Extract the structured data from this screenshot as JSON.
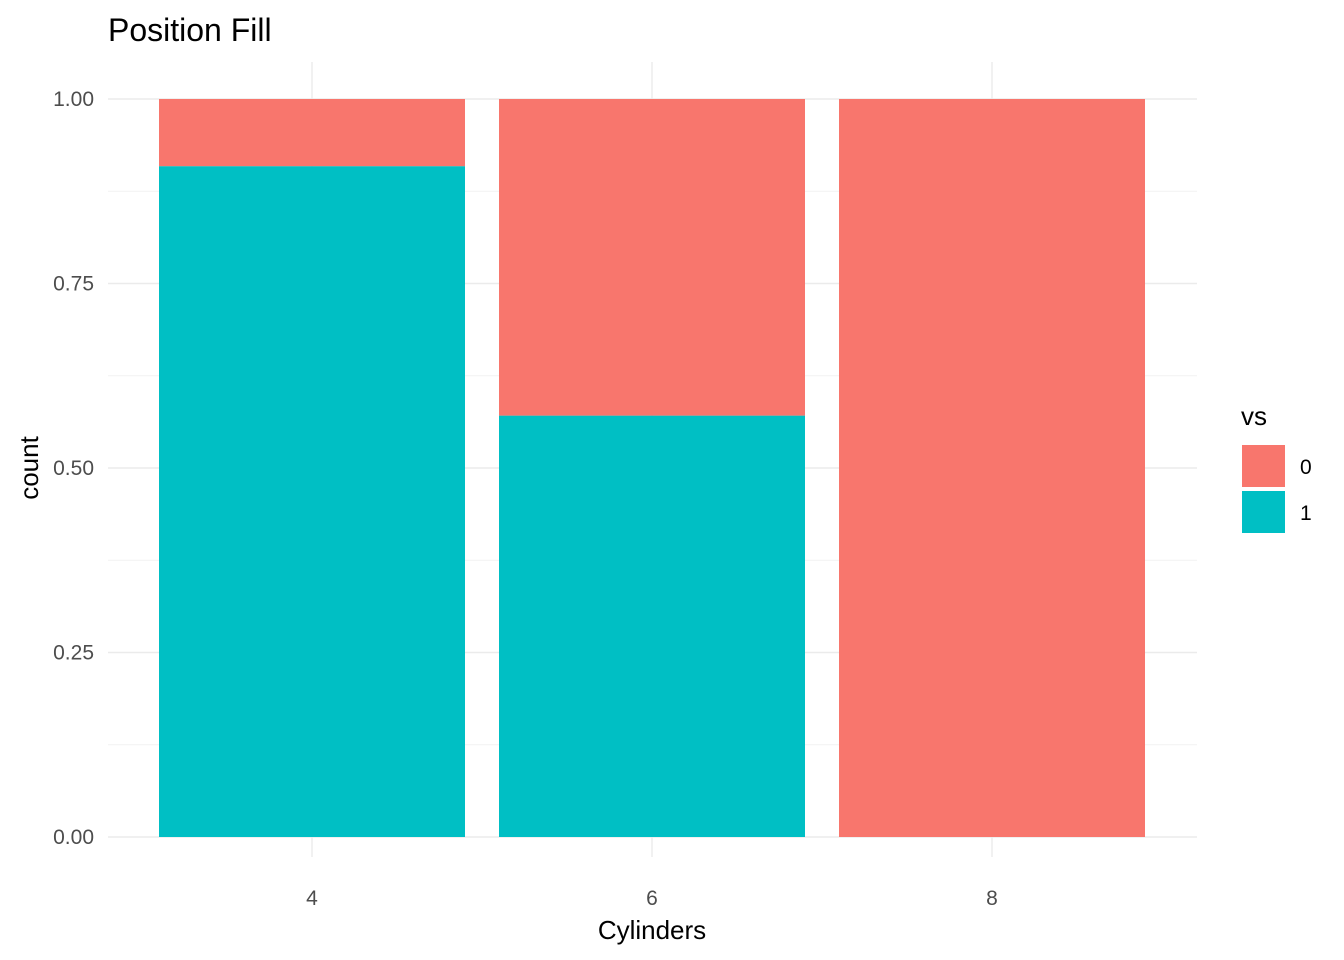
{
  "chart_data": {
    "type": "bar",
    "stacked": true,
    "position": "fill",
    "title": "Position Fill",
    "xlabel": "Cylinders",
    "ylabel": "count",
    "categories": [
      "4",
      "6",
      "8"
    ],
    "series": [
      {
        "name": "0",
        "color": "#F8766D",
        "values": [
          0.091,
          0.429,
          1.0
        ]
      },
      {
        "name": "1",
        "color": "#00BFC4",
        "values": [
          0.909,
          0.571,
          0.0
        ]
      }
    ],
    "ylim": [
      0,
      1
    ],
    "yticks": [
      0,
      0.25,
      0.5,
      0.75,
      1.0
    ],
    "ytick_labels": [
      "0.00",
      "0.25",
      "0.50",
      "0.75",
      "1.00"
    ],
    "grid": true,
    "legend": {
      "title": "vs",
      "position": "right"
    }
  }
}
